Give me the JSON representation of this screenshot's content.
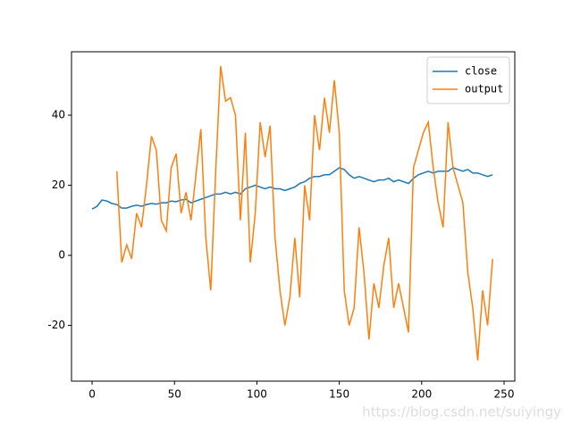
{
  "chart_data": {
    "type": "line",
    "x": [
      0,
      3,
      6,
      9,
      12,
      15,
      18,
      21,
      24,
      27,
      30,
      33,
      36,
      39,
      42,
      45,
      48,
      51,
      54,
      57,
      60,
      63,
      66,
      69,
      72,
      75,
      78,
      81,
      84,
      87,
      90,
      93,
      96,
      99,
      102,
      105,
      108,
      111,
      114,
      117,
      120,
      123,
      126,
      129,
      132,
      135,
      138,
      141,
      144,
      147,
      150,
      153,
      156,
      159,
      162,
      165,
      168,
      171,
      174,
      177,
      180,
      183,
      186,
      189,
      192,
      195,
      198,
      201,
      204,
      207,
      210,
      213,
      216,
      219,
      222,
      225,
      228,
      231,
      234,
      237,
      240,
      243
    ],
    "series": [
      {
        "name": "close",
        "color": "#1f77b4",
        "values": [
          13.2,
          14,
          15.8,
          15.5,
          14.8,
          14.5,
          13.5,
          13.5,
          14,
          14.3,
          14,
          14.5,
          14.8,
          14.6,
          15,
          15,
          15.5,
          15.3,
          15.8,
          16,
          15,
          15.5,
          16,
          16.5,
          17,
          17.5,
          17.5,
          18,
          17.5,
          18,
          17.5,
          19,
          19.5,
          20,
          19.5,
          19,
          19.5,
          19,
          19,
          18.5,
          19,
          19.5,
          20.5,
          21,
          22,
          22.5,
          22.5,
          23,
          23,
          24,
          25,
          24.5,
          23,
          22,
          22.5,
          22,
          21.5,
          21,
          21.5,
          21.5,
          22,
          21,
          21.5,
          21,
          20.5,
          22,
          23,
          23.5,
          24,
          23.5,
          24,
          24,
          24,
          25,
          24.5,
          24,
          24.5,
          23.5,
          23.5,
          23,
          22.5,
          23
        ]
      },
      {
        "name": "output",
        "color": "#ff7f0e",
        "values": [
          null,
          null,
          null,
          null,
          null,
          24,
          -2,
          3,
          -1,
          12,
          8,
          20,
          34,
          30,
          10,
          7,
          25,
          29,
          12,
          18,
          10,
          23,
          36,
          5,
          -10,
          24,
          54,
          44,
          45,
          40,
          10,
          35,
          -2,
          12,
          38,
          28,
          37,
          5,
          -10,
          -20,
          -12,
          5,
          -12,
          20,
          10,
          40,
          30,
          45,
          35,
          50,
          35,
          -10,
          -20,
          -15,
          8,
          -5,
          -24,
          -8,
          -15,
          -3,
          5,
          -15,
          -8,
          -15,
          -22,
          25,
          30,
          35,
          38,
          25,
          15,
          8,
          38,
          25,
          20,
          15,
          -5,
          -15,
          -30,
          -10,
          -20,
          -1
        ]
      }
    ],
    "xlim": [
      -12.5,
      256.5
    ],
    "ylim": [
      -35.9,
      58.1
    ],
    "xticks": [
      0,
      50,
      100,
      150,
      200,
      250
    ],
    "yticks": [
      -20,
      0,
      20,
      40
    ],
    "legend": "upper right",
    "watermark": "https://blog.csdn.net/suiyingy"
  }
}
